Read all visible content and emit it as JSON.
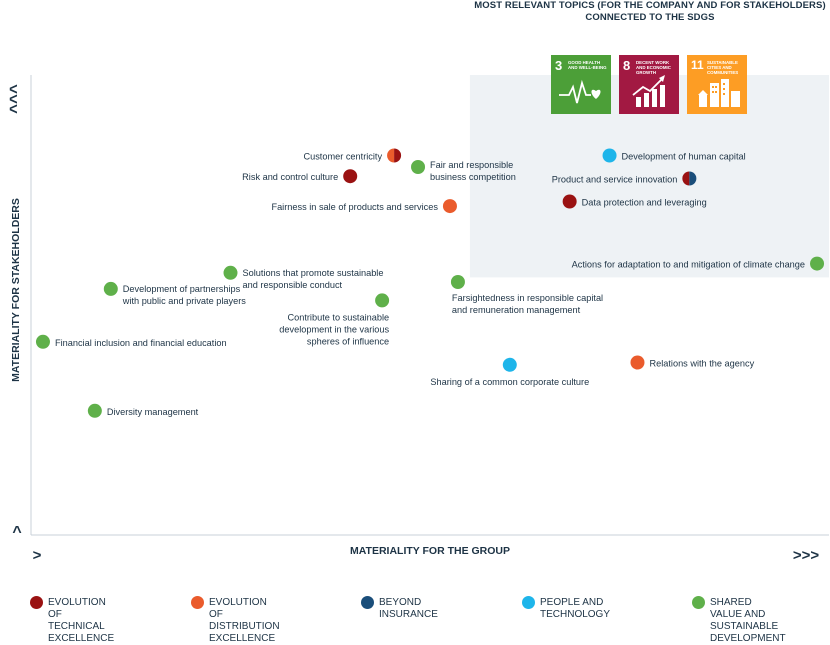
{
  "header": {
    "title": "MOST RELEVANT TOPICS (FOR THE COMPANY AND FOR STAKEHOLDERS)\nCONNECTED TO THE SDGS"
  },
  "sdgs": [
    {
      "number": "3",
      "label": "GOOD HEALTH AND WELL-BEING",
      "color": "#4c9f38",
      "icon": "heartbeat-icon"
    },
    {
      "number": "8",
      "label": "DECENT WORK AND ECONOMIC GROWTH",
      "color": "#a21942",
      "icon": "growth-chart-icon"
    },
    {
      "number": "11",
      "label": "SUSTAINABLE CITIES AND COMMUNITIES",
      "color": "#fd9d24",
      "icon": "city-icon"
    }
  ],
  "legend": [
    {
      "key": "technical",
      "label": "EVOLUTION OF\nTECHNICAL EXCELLENCE",
      "color": "#9a1212"
    },
    {
      "key": "distribution",
      "label": "EVOLUTION OF\nDISTRIBUTION EXCELLENCE",
      "color": "#ea5b2c"
    },
    {
      "key": "beyond",
      "label": "BEYOND INSURANCE",
      "color": "#1a4e7a"
    },
    {
      "key": "people",
      "label": "PEOPLE AND TECHNOLOGY",
      "color": "#1eb5ea"
    },
    {
      "key": "shared",
      "label": "SHARED VALUE AND\nSUSTAINABLE\nDEVELOPMENT",
      "color": "#5fb04a"
    }
  ],
  "chart_data": {
    "type": "scatter",
    "title": "",
    "xlabel": "MATERIALITY FOR THE GROUP",
    "ylabel": "MATERIALITY FOR STAKEHOLDERS",
    "x_axis_markers": {
      "low": ">",
      "high": ">>>"
    },
    "y_axis_markers": {
      "low": "^",
      "high": "^^^"
    },
    "xlim": [
      0,
      100
    ],
    "ylim": [
      0,
      100
    ],
    "grid": false,
    "highlight_region": {
      "label": "most relevant topics",
      "x": [
        55,
        100
      ],
      "y": [
        56,
        100
      ]
    },
    "points": [
      {
        "label": "Customer centricity",
        "x": 45.5,
        "y": 82.5,
        "categories": [
          "distribution",
          "technical"
        ]
      },
      {
        "label": "Risk and control culture",
        "x": 40,
        "y": 78,
        "categories": [
          "technical"
        ]
      },
      {
        "label": "Fair and responsible\nbusiness competition",
        "x": 48.5,
        "y": 80,
        "categories": [
          "shared"
        ]
      },
      {
        "label": "Fairness in sale of products and services",
        "x": 52.5,
        "y": 71.5,
        "categories": [
          "distribution"
        ]
      },
      {
        "label": "Development of human capital",
        "x": 72.5,
        "y": 82.5,
        "categories": [
          "people"
        ]
      },
      {
        "label": "Product and service innovation",
        "x": 82.5,
        "y": 77.5,
        "categories": [
          "technical",
          "beyond"
        ]
      },
      {
        "label": "Data protection and leveraging",
        "x": 67.5,
        "y": 72.5,
        "categories": [
          "technical"
        ]
      },
      {
        "label": "Actions for adaptation to and mitigation   of climate change",
        "x": 98.5,
        "y": 59,
        "categories": [
          "shared"
        ]
      },
      {
        "label": "Solutions that promote sustainable\nand responsible conduct",
        "x": 25,
        "y": 57,
        "categories": [
          "shared"
        ]
      },
      {
        "label": "Development of partnerships\nwith public and private players",
        "x": 10,
        "y": 53.5,
        "categories": [
          "shared"
        ]
      },
      {
        "label": "Contribute to sustainable\ndevelopment in the various\nspheres of influence",
        "x": 44,
        "y": 51,
        "categories": [
          "shared"
        ]
      },
      {
        "label": "Farsightedness in responsible capital\nand remuneration management",
        "x": 53.5,
        "y": 55,
        "categories": [
          "shared"
        ]
      },
      {
        "label": "Financial inclusion and financial education",
        "x": 1.5,
        "y": 42,
        "categories": [
          "shared"
        ]
      },
      {
        "label": "Sharing of a common corporate culture",
        "x": 60,
        "y": 37,
        "categories": [
          "people"
        ]
      },
      {
        "label": "Relations with the agency",
        "x": 76,
        "y": 37.5,
        "categories": [
          "distribution"
        ]
      },
      {
        "label": "Diversity management",
        "x": 8,
        "y": 27,
        "categories": [
          "shared"
        ]
      }
    ]
  }
}
